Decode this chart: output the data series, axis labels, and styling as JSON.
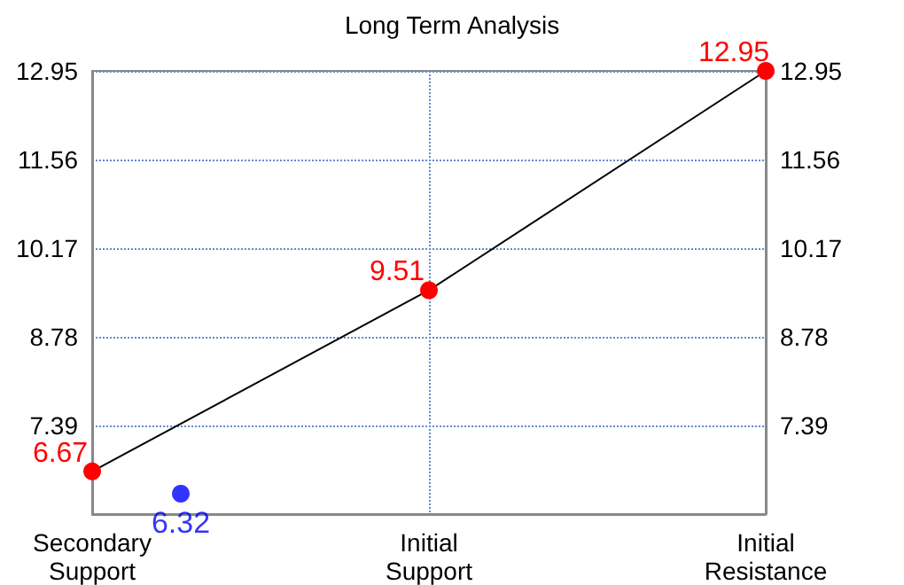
{
  "chart_data": {
    "type": "line",
    "title": "Long Term Analysis",
    "categories": [
      "Secondary\nSupport",
      "Initial\nSupport",
      "Initial\nResistance"
    ],
    "series": [
      {
        "name": null,
        "color": "#ff0000",
        "values": [
          6.67,
          9.51,
          12.95
        ]
      },
      {
        "name": null,
        "type": "scatter",
        "color": "#0000ff",
        "x": [
          "Secondary\nSupport"
        ],
        "values": [
          6.32
        ]
      }
    ],
    "data_labels": true,
    "marker": "circle",
    "grid": true,
    "ylim": [
      6.0,
      12.95
    ],
    "yticks": [
      7.39,
      8.78,
      10.17,
      11.56,
      12.95
    ],
    "y2lim": [
      6.0,
      12.95
    ],
    "y2ticks": [
      7.39,
      8.78,
      10.17,
      11.56,
      12.95
    ]
  }
}
